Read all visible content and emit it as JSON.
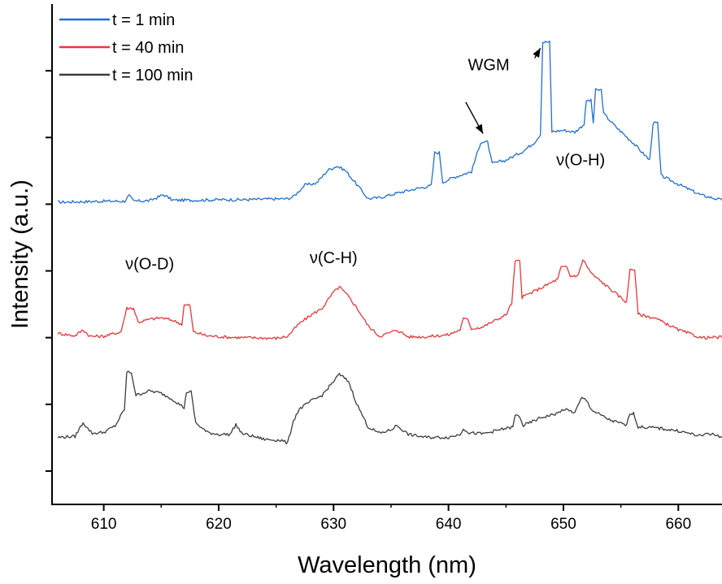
{
  "chart_data": {
    "type": "line",
    "xlabel": "Wavelength (nm)",
    "ylabel": "Intensity (a.u.)",
    "xlim": [
      605.5,
      663.8
    ],
    "ylim": [
      0,
      1
    ],
    "x_ticks": [
      610,
      620,
      630,
      640,
      650,
      660
    ],
    "x_tick_labels": [
      "610",
      "620",
      "630",
      "640",
      "650",
      "660"
    ],
    "y_tick_labels_shown": false,
    "grid": false,
    "legend_position": "top-left",
    "series": [
      {
        "name": "t = 1 min",
        "color": "#1f6fd1",
        "points": [
          [
            606,
            0.604
          ],
          [
            608,
            0.605
          ],
          [
            610,
            0.606
          ],
          [
            611.8,
            0.606
          ],
          [
            612.2,
            0.617
          ],
          [
            612.6,
            0.606
          ],
          [
            614,
            0.607
          ],
          [
            615.2,
            0.619
          ],
          [
            616,
            0.608
          ],
          [
            618,
            0.608
          ],
          [
            620,
            0.609
          ],
          [
            622,
            0.609
          ],
          [
            624,
            0.61
          ],
          [
            626,
            0.611
          ],
          [
            626.5,
            0.615
          ],
          [
            627.5,
            0.638
          ],
          [
            628.5,
            0.642
          ],
          [
            629.5,
            0.668
          ],
          [
            630.3,
            0.676
          ],
          [
            631,
            0.668
          ],
          [
            632,
            0.64
          ],
          [
            633,
            0.611
          ],
          [
            634,
            0.613
          ],
          [
            635.5,
            0.622
          ],
          [
            637,
            0.63
          ],
          [
            638.5,
            0.637
          ],
          [
            638.8,
            0.703
          ],
          [
            639.2,
            0.703
          ],
          [
            639.5,
            0.644
          ],
          [
            640.5,
            0.654
          ],
          [
            642,
            0.665
          ],
          [
            642.8,
            0.724
          ],
          [
            643.4,
            0.724
          ],
          [
            643.8,
            0.681
          ],
          [
            645,
            0.688
          ],
          [
            646.5,
            0.706
          ],
          [
            647.5,
            0.724
          ],
          [
            648,
            0.74
          ],
          [
            648.2,
            0.924
          ],
          [
            648.8,
            0.924
          ],
          [
            649,
            0.745
          ],
          [
            650,
            0.748
          ],
          [
            651,
            0.744
          ],
          [
            651.8,
            0.76
          ],
          [
            652,
            0.807
          ],
          [
            652.4,
            0.807
          ],
          [
            652.6,
            0.763
          ],
          [
            652.8,
            0.828
          ],
          [
            653.3,
            0.828
          ],
          [
            653.5,
            0.781
          ],
          [
            654.5,
            0.756
          ],
          [
            656,
            0.724
          ],
          [
            657.5,
            0.688
          ],
          [
            657.8,
            0.762
          ],
          [
            658.2,
            0.762
          ],
          [
            658.5,
            0.657
          ],
          [
            660,
            0.64
          ],
          [
            662,
            0.618
          ],
          [
            663.8,
            0.608
          ]
        ]
      },
      {
        "name": "t = 40 min",
        "color": "#e8373b",
        "points": [
          [
            606,
            0.342
          ],
          [
            607.5,
            0.337
          ],
          [
            608.2,
            0.349
          ],
          [
            608.8,
            0.336
          ],
          [
            610,
            0.336
          ],
          [
            611.5,
            0.345
          ],
          [
            612,
            0.392
          ],
          [
            612.6,
            0.392
          ],
          [
            613,
            0.364
          ],
          [
            614,
            0.37
          ],
          [
            615,
            0.373
          ],
          [
            616,
            0.368
          ],
          [
            616.8,
            0.36
          ],
          [
            617,
            0.398
          ],
          [
            617.5,
            0.398
          ],
          [
            617.8,
            0.345
          ],
          [
            619,
            0.337
          ],
          [
            621,
            0.334
          ],
          [
            623,
            0.333
          ],
          [
            625,
            0.332
          ],
          [
            626,
            0.336
          ],
          [
            627,
            0.361
          ],
          [
            628,
            0.378
          ],
          [
            629,
            0.392
          ],
          [
            630,
            0.424
          ],
          [
            630.5,
            0.435
          ],
          [
            631.2,
            0.418
          ],
          [
            632,
            0.394
          ],
          [
            633,
            0.357
          ],
          [
            634,
            0.336
          ],
          [
            635,
            0.344
          ],
          [
            635.5,
            0.349
          ],
          [
            636.5,
            0.335
          ],
          [
            638,
            0.335
          ],
          [
            640,
            0.339
          ],
          [
            641,
            0.349
          ],
          [
            641.3,
            0.371
          ],
          [
            641.7,
            0.369
          ],
          [
            642,
            0.351
          ],
          [
            643,
            0.355
          ],
          [
            645,
            0.379
          ],
          [
            645.5,
            0.402
          ],
          [
            645.8,
            0.486
          ],
          [
            646.2,
            0.486
          ],
          [
            646.4,
            0.414
          ],
          [
            648,
            0.432
          ],
          [
            649.5,
            0.45
          ],
          [
            649.8,
            0.474
          ],
          [
            650.3,
            0.474
          ],
          [
            650.6,
            0.456
          ],
          [
            651.3,
            0.458
          ],
          [
            651.7,
            0.49
          ],
          [
            652.1,
            0.474
          ],
          [
            652.5,
            0.46
          ],
          [
            654,
            0.432
          ],
          [
            655.5,
            0.404
          ],
          [
            655.8,
            0.471
          ],
          [
            656.2,
            0.47
          ],
          [
            656.5,
            0.38
          ],
          [
            658,
            0.372
          ],
          [
            660,
            0.349
          ],
          [
            662,
            0.333
          ],
          [
            663.8,
            0.334
          ]
        ]
      },
      {
        "name": "t = 100 min",
        "color": "#3c3c3c",
        "points": [
          [
            606,
            0.134
          ],
          [
            607.5,
            0.136
          ],
          [
            608.2,
            0.164
          ],
          [
            608.6,
            0.152
          ],
          [
            609,
            0.142
          ],
          [
            610,
            0.144
          ],
          [
            611,
            0.157
          ],
          [
            611.8,
            0.19
          ],
          [
            612,
            0.264
          ],
          [
            612.4,
            0.264
          ],
          [
            612.8,
            0.218
          ],
          [
            614,
            0.227
          ],
          [
            615,
            0.222
          ],
          [
            616,
            0.21
          ],
          [
            617,
            0.193
          ],
          [
            617.2,
            0.225
          ],
          [
            617.6,
            0.225
          ],
          [
            618,
            0.163
          ],
          [
            619,
            0.144
          ],
          [
            620,
            0.14
          ],
          [
            621,
            0.14
          ],
          [
            621.5,
            0.16
          ],
          [
            622,
            0.142
          ],
          [
            624,
            0.13
          ],
          [
            625.5,
            0.128
          ],
          [
            626,
            0.122
          ],
          [
            626.5,
            0.167
          ],
          [
            627,
            0.19
          ],
          [
            628,
            0.206
          ],
          [
            629,
            0.218
          ],
          [
            630,
            0.246
          ],
          [
            630.5,
            0.26
          ],
          [
            631.3,
            0.246
          ],
          [
            632,
            0.202
          ],
          [
            633,
            0.155
          ],
          [
            634,
            0.142
          ],
          [
            635,
            0.149
          ],
          [
            635.5,
            0.158
          ],
          [
            636.5,
            0.14
          ],
          [
            638,
            0.134
          ],
          [
            640,
            0.134
          ],
          [
            641,
            0.14
          ],
          [
            641.3,
            0.152
          ],
          [
            641.8,
            0.143
          ],
          [
            643,
            0.141
          ],
          [
            645,
            0.152
          ],
          [
            645.6,
            0.154
          ],
          [
            645.8,
            0.178
          ],
          [
            646.2,
            0.176
          ],
          [
            646.5,
            0.157
          ],
          [
            648,
            0.173
          ],
          [
            649.5,
            0.182
          ],
          [
            650,
            0.19
          ],
          [
            651,
            0.184
          ],
          [
            651.6,
            0.213
          ],
          [
            652,
            0.208
          ],
          [
            652.5,
            0.188
          ],
          [
            654,
            0.169
          ],
          [
            655.5,
            0.158
          ],
          [
            655.8,
            0.183
          ],
          [
            656.1,
            0.182
          ],
          [
            656.5,
            0.155
          ],
          [
            658,
            0.153
          ],
          [
            660,
            0.147
          ],
          [
            662,
            0.136
          ],
          [
            662.5,
            0.143
          ],
          [
            663.8,
            0.134
          ]
        ]
      }
    ],
    "annotations": [
      {
        "text": "WGM",
        "anchor": [
          643.5,
          0.868
        ]
      },
      {
        "text": "ν(O-D)",
        "anchor": [
          614,
          0.47
        ]
      },
      {
        "text": "ν(C-H)",
        "anchor": [
          630,
          0.482
        ]
      },
      {
        "text": "ν(O-H)",
        "anchor": [
          651.5,
          0.678
        ]
      }
    ],
    "arrows": [
      {
        "label": "WGM",
        "from": [
          647.5,
          0.892
        ],
        "to": [
          648,
          0.912
        ]
      },
      {
        "label": "WGM",
        "from": [
          641.5,
          0.804
        ],
        "to": [
          643,
          0.741
        ]
      }
    ]
  }
}
